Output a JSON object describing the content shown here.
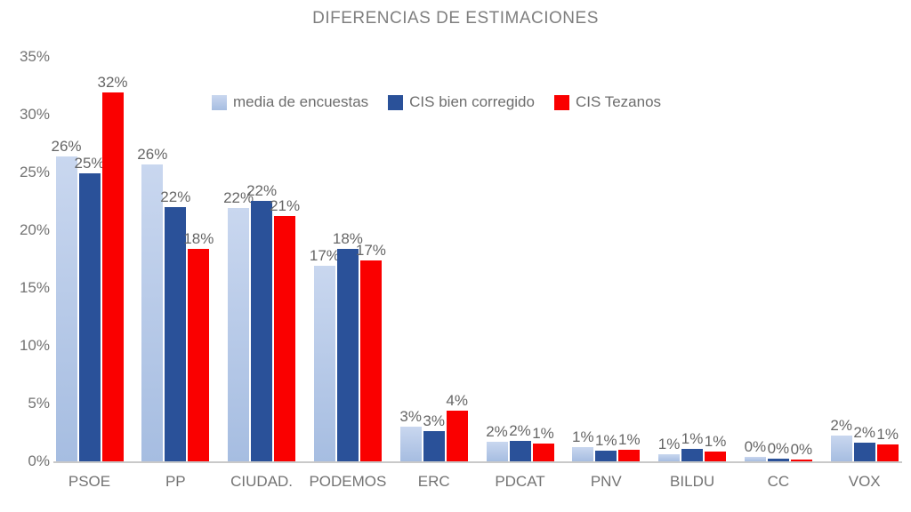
{
  "chart_data": {
    "type": "bar",
    "title": "DIFERENCIAS DE ESTIMACIONES",
    "xlabel": "",
    "ylabel": "",
    "ylim": [
      0,
      35
    ],
    "grid": false,
    "legend_position": "top-center-inside",
    "y_tick_labels": [
      "0%",
      "5%",
      "10%",
      "15%",
      "20%",
      "25%",
      "30%",
      "35%"
    ],
    "y_tick_values": [
      0,
      5,
      10,
      15,
      20,
      25,
      30,
      35
    ],
    "categories": [
      "PSOE",
      "PP",
      "CIUDAD.",
      "PODEMOS",
      "ERC",
      "PDCAT",
      "PNV",
      "BILDU",
      "CC",
      "VOX"
    ],
    "series": [
      {
        "name": "media de encuestas",
        "color": "#b4c7e7",
        "values": [
          26.4,
          25.7,
          21.9,
          16.9,
          3.0,
          1.7,
          1.2,
          0.65,
          0.35,
          2.2
        ],
        "labels": [
          "26%",
          "26%",
          "22%",
          "17%",
          "3%",
          "2%",
          "1%",
          "1%",
          "0%",
          "2%"
        ]
      },
      {
        "name": "CIS bien corregido",
        "color": "#2a5199",
        "values": [
          24.9,
          22.0,
          22.5,
          18.4,
          2.6,
          1.8,
          0.9,
          1.05,
          0.25,
          1.6
        ],
        "labels": [
          "25%",
          "22%",
          "22%",
          "18%",
          "3%",
          "2%",
          "1%",
          "1%",
          "0%",
          "2%"
        ]
      },
      {
        "name": "CIS Tezanos",
        "color": "#fa0000",
        "values": [
          31.9,
          18.4,
          21.2,
          17.4,
          4.4,
          1.5,
          1.0,
          0.85,
          0.15,
          1.45
        ],
        "labels": [
          "32%",
          "18%",
          "21%",
          "17%",
          "4%",
          "1%",
          "1%",
          "1%",
          "0%",
          "1%"
        ]
      }
    ],
    "colors": {
      "title_text": "#7f7f7f",
      "axis_text": "#737373",
      "data_label_text": "#666666",
      "axis_line": "#c9c9c9",
      "background": "#ffffff"
    }
  }
}
